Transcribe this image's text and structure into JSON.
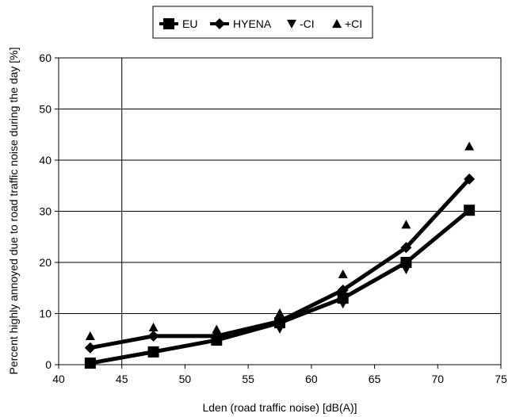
{
  "chart_data": {
    "type": "line",
    "title": "",
    "xlabel": "Lden (road traffic noise) [dB(A)]",
    "ylabel": "Percent highly annoyed due to road traffic noise during the day [%]",
    "xlim": [
      40,
      75
    ],
    "ylim": [
      0,
      60
    ],
    "x_ticks": [
      40,
      45,
      50,
      55,
      60,
      65,
      70,
      75
    ],
    "x_tick_labels": [
      "40",
      "45",
      "50",
      "55",
      "60",
      "65",
      "70",
      "75"
    ],
    "y_ticks": [
      0,
      10,
      20,
      30,
      40,
      50,
      60
    ],
    "y_tick_labels": [
      "0",
      "10",
      "20",
      "30",
      "40",
      "50",
      "60"
    ],
    "grid": "horizontal",
    "reference_line_x": 45,
    "legend_position": "top",
    "series": [
      {
        "name": "EU",
        "marker": "square",
        "line": true,
        "color": "#000000",
        "x": [
          42.5,
          47.5,
          52.5,
          57.5,
          62.5,
          67.5,
          72.5
        ],
        "y": [
          0.3,
          2.5,
          4.8,
          8.2,
          13.0,
          20.0,
          30.2
        ]
      },
      {
        "name": "HYENA",
        "marker": "diamond",
        "line": true,
        "color": "#000000",
        "x": [
          42.5,
          47.5,
          52.5,
          57.5,
          62.5,
          67.5,
          72.5
        ],
        "y": [
          3.3,
          5.6,
          5.6,
          8.5,
          14.6,
          22.9,
          36.3
        ]
      },
      {
        "name": "-CI",
        "marker": "triangle-down",
        "line": false,
        "color": "#000000",
        "x": [
          42.5,
          47.5,
          52.5,
          57.5,
          62.5,
          67.5,
          72.5
        ],
        "y": [
          0.6,
          2.4,
          4.6,
          7.0,
          11.9,
          18.6,
          30.1
        ]
      },
      {
        "name": "+CI",
        "marker": "triangle-up",
        "line": false,
        "color": "#000000",
        "x": [
          42.5,
          47.5,
          52.5,
          57.5,
          62.5,
          67.5,
          72.5
        ],
        "y": [
          5.6,
          7.3,
          6.9,
          10.1,
          17.7,
          27.4,
          42.7
        ]
      }
    ]
  }
}
